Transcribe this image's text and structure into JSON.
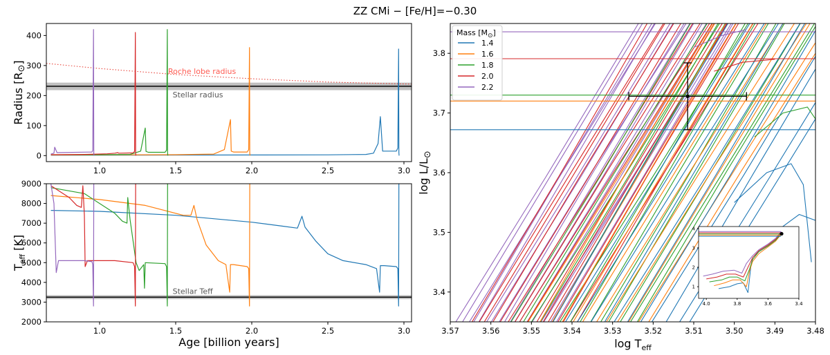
{
  "title": "ZZ CMi − [Fe/H]=−0.30",
  "colors": {
    "1.4": "#1f77b4",
    "1.6": "#ff7f0e",
    "1.8": "#2ca02c",
    "2.0": "#d62728",
    "2.2": "#9467bd"
  },
  "chart_data": [
    {
      "type": "line",
      "panel": "radius",
      "ylabel_main": "Radius [R",
      "ylabel_sym": "⊙",
      "ylabel_end": "]",
      "xlim": [
        0.65,
        3.05
      ],
      "ylim": [
        -20,
        440
      ],
      "xticks": [
        1.0,
        1.5,
        2.0,
        2.5,
        3.0
      ],
      "xtick_labels": [
        "1.0",
        "1.5",
        "2.0",
        "2.5",
        "3.0"
      ],
      "yticks": [
        0,
        100,
        200,
        300,
        400
      ],
      "ytick_labels": [
        "0",
        "100",
        "200",
        "300",
        "400"
      ],
      "stellar_radius": {
        "value": 231,
        "band": [
          218,
          243
        ],
        "label": "Stellar radius"
      },
      "roche_lobe": {
        "x": [
          0.65,
          1.0,
          1.5,
          2.0,
          2.5,
          3.05
        ],
        "y": [
          307,
          290,
          270,
          256,
          245,
          238
        ],
        "label": "Roche lobe radius"
      },
      "series": [
        {
          "mass": "1.4",
          "x": [
            0.68,
            1.0,
            1.5,
            2.0,
            2.5,
            2.75,
            2.8,
            2.83,
            2.845,
            2.86,
            2.95,
            2.96,
            2.965,
            2.967,
            2.968
          ],
          "y": [
            1.5,
            1.6,
            1.8,
            2.0,
            2.5,
            4,
            8,
            40,
            130,
            15,
            15,
            25,
            355,
            10,
            0
          ]
        },
        {
          "mass": "1.6",
          "x": [
            0.68,
            1.0,
            1.5,
            1.75,
            1.82,
            1.86,
            1.865,
            1.88,
            1.97,
            1.98,
            1.985,
            1.987,
            1.988
          ],
          "y": [
            2,
            2.2,
            3,
            5,
            20,
            120,
            15,
            12,
            12,
            20,
            360,
            10,
            0
          ]
        },
        {
          "mass": "1.8",
          "x": [
            0.68,
            1.0,
            1.2,
            1.27,
            1.3,
            1.305,
            1.32,
            1.43,
            1.44,
            1.445,
            1.447,
            1.448
          ],
          "y": [
            2.5,
            3,
            4,
            15,
            92,
            14,
            11,
            11,
            18,
            420,
            10,
            0
          ]
        },
        {
          "mass": "2.0",
          "x": [
            0.68,
            0.9,
            1.05,
            1.1,
            1.12,
            1.125,
            1.22,
            1.23,
            1.235,
            1.237,
            1.238
          ],
          "y": [
            3,
            4,
            6,
            8,
            10,
            8,
            9,
            14,
            410,
            8,
            0
          ]
        },
        {
          "mass": "2.2",
          "x": [
            0.68,
            0.7,
            0.705,
            0.72,
            0.95,
            0.955,
            0.96,
            0.962,
            0.963
          ],
          "y": [
            5,
            8,
            28,
            10,
            12,
            18,
            420,
            8,
            0
          ]
        }
      ]
    },
    {
      "type": "line",
      "panel": "teff",
      "ylabel_main": "T",
      "ylabel_sub": "eff",
      "ylabel_end": " [K]",
      "xlabel": "Age [billion years]",
      "xlim": [
        0.65,
        3.05
      ],
      "ylim": [
        2000,
        9000
      ],
      "xticks": [
        1.0,
        1.5,
        2.0,
        2.5,
        3.0
      ],
      "xtick_labels": [
        "1.0",
        "1.5",
        "2.0",
        "2.5",
        "3.0"
      ],
      "yticks": [
        2000,
        3000,
        4000,
        5000,
        6000,
        7000,
        8000,
        9000
      ],
      "ytick_labels": [
        "2000",
        "3000",
        "4000",
        "5000",
        "6000",
        "7000",
        "8000",
        "9000"
      ],
      "stellar_teff": {
        "value": 3250,
        "band": [
          3150,
          3350
        ],
        "label": "Stellar Teff"
      },
      "series": [
        {
          "mass": "1.4",
          "x": [
            0.68,
            1.0,
            1.5,
            2.0,
            2.2,
            2.3,
            2.33,
            2.35,
            2.42,
            2.5,
            2.6,
            2.75,
            2.82,
            2.84,
            2.845,
            2.87,
            2.95,
            2.96,
            2.965,
            2.967
          ],
          "y": [
            7650,
            7600,
            7400,
            7050,
            6850,
            6750,
            7350,
            6800,
            6100,
            5450,
            5100,
            4900,
            4700,
            3500,
            4850,
            4850,
            4800,
            4700,
            2800,
            9000
          ]
        },
        {
          "mass": "1.6",
          "x": [
            0.68,
            1.0,
            1.3,
            1.55,
            1.6,
            1.62,
            1.64,
            1.7,
            1.78,
            1.83,
            1.855,
            1.86,
            1.88,
            1.97,
            1.98,
            1.985,
            1.987
          ],
          "y": [
            8400,
            8200,
            7900,
            7400,
            7400,
            7900,
            7200,
            5900,
            5100,
            4900,
            3500,
            4900,
            4900,
            4800,
            4700,
            2800,
            9000
          ]
        },
        {
          "mass": "1.8",
          "x": [
            0.68,
            0.9,
            1.1,
            1.15,
            1.18,
            1.185,
            1.2,
            1.24,
            1.26,
            1.29,
            1.295,
            1.3,
            1.43,
            1.44,
            1.445,
            1.447
          ],
          "y": [
            8800,
            8500,
            7500,
            7100,
            7000,
            8300,
            7200,
            5000,
            4600,
            4900,
            3700,
            5000,
            4950,
            4800,
            2800,
            9000
          ]
        },
        {
          "mass": "2.0",
          "x": [
            0.68,
            0.8,
            0.85,
            0.88,
            0.89,
            0.9,
            0.905,
            0.92,
            1.1,
            1.22,
            1.23,
            1.235,
            1.237
          ],
          "y": [
            8900,
            8300,
            7900,
            7800,
            8900,
            7400,
            4800,
            5100,
            5100,
            5000,
            4800,
            2800,
            9000
          ]
        },
        {
          "mass": "2.2",
          "x": [
            0.68,
            0.7,
            0.715,
            0.73,
            0.9,
            0.95,
            0.955,
            0.96,
            0.962
          ],
          "y": [
            9000,
            8000,
            4500,
            5100,
            5100,
            5050,
            4900,
            2800,
            9000
          ]
        }
      ]
    },
    {
      "type": "line",
      "panel": "hr",
      "xlim": [
        3.57,
        3.48
      ],
      "ylim": [
        3.35,
        3.85
      ],
      "xticks": [
        3.57,
        3.56,
        3.55,
        3.54,
        3.53,
        3.52,
        3.51,
        3.5,
        3.49,
        3.48
      ],
      "xtick_labels": [
        "3.57",
        "3.56",
        "3.55",
        "3.54",
        "3.53",
        "3.52",
        "3.51",
        "3.50",
        "3.49",
        "3.48"
      ],
      "yticks": [
        3.4,
        3.5,
        3.6,
        3.7,
        3.8
      ],
      "ytick_labels": [
        "3.4",
        "3.5",
        "3.6",
        "3.7",
        "3.8"
      ],
      "xlabel_main": "log T",
      "xlabel_sub": "eff",
      "ylabel_main": "log L/L",
      "ylabel_sym": "⊙",
      "star": {
        "x": 3.5115,
        "y": 3.728,
        "xerr": 0.0145,
        "yerr": 0.056
      },
      "legend": {
        "title": "Mass [M",
        "title_sym": "⊙",
        "title_end": "]",
        "entries": [
          "1.4",
          "1.6",
          "1.8",
          "2.0",
          "2.2"
        ],
        "position": "upper-left"
      },
      "horizontal_branches": [
        {
          "mass": "2.2",
          "y": 3.836
        },
        {
          "mass": "2.0",
          "y": 3.791
        },
        {
          "mass": "1.8",
          "y": 3.73
        },
        {
          "mass": "1.6",
          "y": 3.72
        },
        {
          "mass": "1.4",
          "y": 3.672
        }
      ],
      "rgb_bands": [
        {
          "mass": "2.2",
          "from": 3.57,
          "to": 3.545,
          "n": 18
        },
        {
          "mass": "2.0",
          "from": 3.566,
          "to": 3.54,
          "n": 16
        },
        {
          "mass": "1.8",
          "from": 3.556,
          "to": 3.525,
          "n": 14
        },
        {
          "mass": "1.6",
          "from": 3.552,
          "to": 3.522,
          "n": 12
        },
        {
          "mass": "1.4",
          "from": 3.546,
          "to": 3.512,
          "n": 12
        }
      ],
      "inset": {
        "xlim": [
          4.05,
          3.4
        ],
        "ylim": [
          0.4,
          4.1
        ],
        "xticks": [
          4.0,
          3.8,
          3.6,
          3.4
        ],
        "xtick_labels": [
          "4.0",
          "3.8",
          "3.6",
          "3.4"
        ],
        "yticks": [
          1,
          2,
          3,
          4
        ],
        "ytick_labels": [
          "1",
          "2",
          "3",
          "4"
        ],
        "star": {
          "x": 3.512,
          "y": 3.728
        },
        "series": [
          {
            "mass": "1.4",
            "x": [
              3.92,
              3.85,
              3.8,
              3.76,
              3.73,
              3.72,
              3.71,
              3.7,
              3.66,
              3.6,
              3.55,
              3.515
            ],
            "y": [
              0.9,
              1.0,
              1.15,
              1.2,
              0.7,
              1.4,
              2.1,
              2.5,
              2.8,
              3.1,
              3.4,
              3.67
            ]
          },
          {
            "mass": "1.6",
            "x": [
              3.95,
              3.88,
              3.83,
              3.78,
              3.74,
              3.72,
              3.7,
              3.66,
              3.6,
              3.55,
              3.515
            ],
            "y": [
              1.05,
              1.2,
              1.35,
              1.35,
              1.0,
              1.8,
              2.3,
              2.7,
              3.05,
              3.35,
              3.7
            ]
          },
          {
            "mass": "1.8",
            "x": [
              3.98,
              3.9,
              3.85,
              3.8,
              3.75,
              3.72,
              3.7,
              3.66,
              3.6,
              3.55,
              3.515
            ],
            "y": [
              1.25,
              1.35,
              1.5,
              1.5,
              1.3,
              1.9,
              2.4,
              2.8,
              3.1,
              3.4,
              3.73
            ]
          },
          {
            "mass": "2.0",
            "x": [
              4.0,
              3.93,
              3.87,
              3.81,
              3.76,
              3.73,
              3.7,
              3.66,
              3.6,
              3.55,
              3.515
            ],
            "y": [
              1.4,
              1.5,
              1.65,
              1.65,
              1.5,
              2.0,
              2.5,
              2.85,
              3.15,
              3.45,
              3.79
            ]
          },
          {
            "mass": "2.2",
            "x": [
              4.02,
              3.96,
              3.89,
              3.82,
              3.77,
              3.74,
              3.7,
              3.66,
              3.6,
              3.55,
              3.515
            ],
            "y": [
              1.55,
              1.65,
              1.8,
              1.85,
              1.7,
              2.2,
              2.6,
              2.9,
              3.2,
              3.5,
              3.84
            ]
          }
        ]
      }
    }
  ]
}
